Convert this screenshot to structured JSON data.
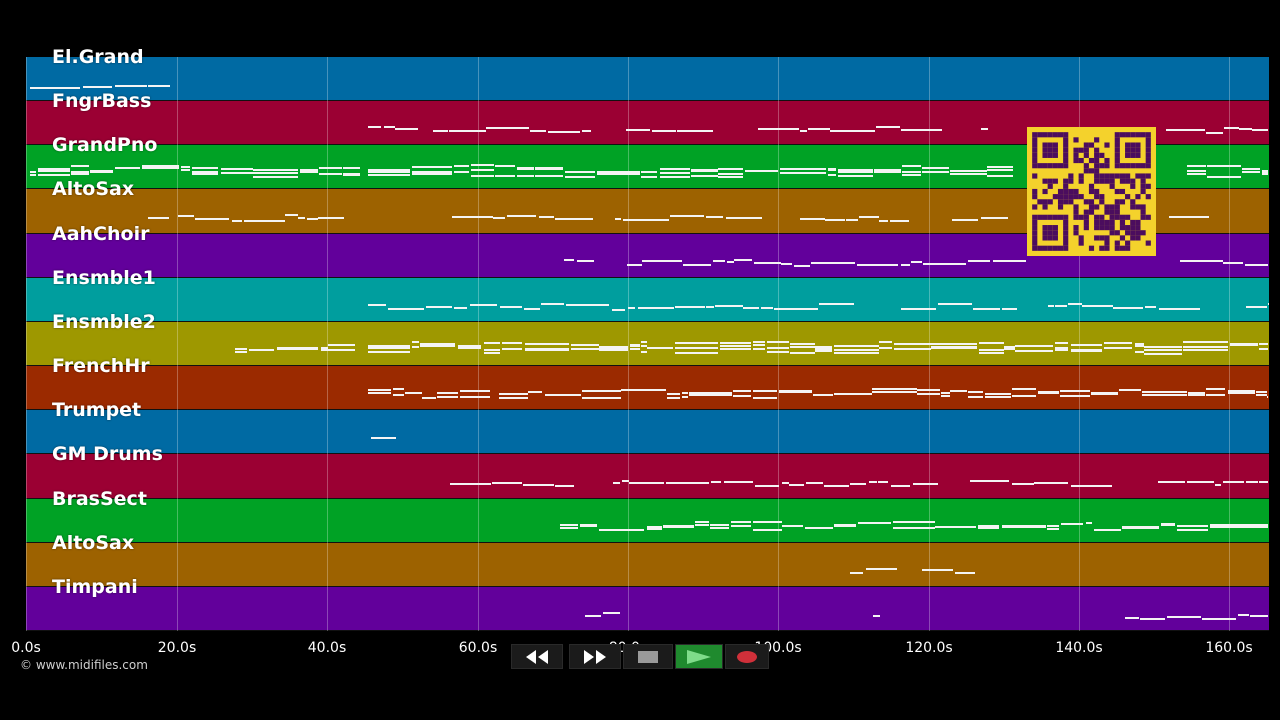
{
  "tracks": [
    {
      "name": "El.Grand",
      "color": "#006aa3"
    },
    {
      "name": "FngrBass",
      "color": "#9b0033"
    },
    {
      "name": "GrandPno",
      "color": "#00a225"
    },
    {
      "name": "AltoSax",
      "color": "#9d6200"
    },
    {
      "name": "AahChoir",
      "color": "#62009b"
    },
    {
      "name": "Ensmble1",
      "color": "#009e9e"
    },
    {
      "name": "Ensmble2",
      "color": "#9e9800"
    },
    {
      "name": "FrenchHr",
      "color": "#9b2a00"
    },
    {
      "name": "Trumpet",
      "color": "#006aa3"
    },
    {
      "name": "GM Drums",
      "color": "#9b0033"
    },
    {
      "name": "BrasSect",
      "color": "#00a225"
    },
    {
      "name": "AltoSax",
      "color": "#9d6200"
    },
    {
      "name": "Timpani",
      "color": "#62009b"
    },
    {
      "name": "",
      "color": "#62009b"
    }
  ],
  "timeline": {
    "ticks": [
      "0.0s",
      "20.0s",
      "40.0s",
      "60.0s",
      "80.0s",
      "100.0s",
      "120.0s",
      "140.0s",
      "160.0s"
    ]
  },
  "copyright": "© www.midifiles.com",
  "controls": {
    "rewind_icon": "rewind-icon",
    "fast_forward_icon": "fast-forward-icon",
    "stop_icon": "stop-icon",
    "play_icon": "play-icon",
    "record_icon": "record-icon",
    "play_color": "#1f8a2e",
    "record_color": "#d0303a"
  },
  "qr_code": {
    "color": "#f4d22c",
    "dark": "#4b0d5e"
  }
}
